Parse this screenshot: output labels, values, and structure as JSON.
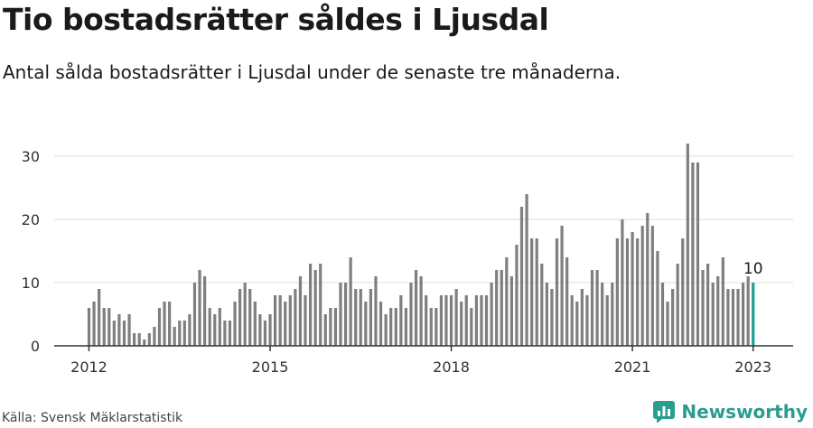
{
  "header": {
    "title": "Tio bostadsrätter såldes i Ljusdal",
    "subtitle": "Antal sålda bostadsrätter i Ljusdal under de senaste tre månaderna."
  },
  "footer": {
    "source": "Källa: Svensk Mäklarstatistik",
    "brand": "Newsworthy"
  },
  "colors": {
    "bar": "#7f7f7f",
    "highlight": "#1f9e94",
    "grid": "#dedede",
    "axis": "#333333",
    "brand": "#2a9d8f"
  },
  "chart_data": {
    "type": "bar",
    "title": "Tio bostadsrätter såldes i Ljusdal",
    "subtitle": "Antal sålda bostadsrätter i Ljusdal under de senaste tre månaderna.",
    "xlabel": "",
    "ylabel": "",
    "ylim": [
      0,
      32
    ],
    "yticks": [
      "0",
      "10",
      "20",
      "30"
    ],
    "xticks": [
      "2012",
      "2015",
      "2018",
      "2021",
      "2023"
    ],
    "grid": true,
    "legend": "none",
    "start": "2012-01",
    "end": "2023-01",
    "highlight_label": "10",
    "values": [
      6,
      7,
      9,
      6,
      6,
      4,
      5,
      4,
      5,
      2,
      2,
      1,
      2,
      3,
      6,
      7,
      7,
      3,
      4,
      4,
      5,
      10,
      12,
      11,
      6,
      5,
      6,
      4,
      4,
      7,
      9,
      10,
      9,
      7,
      5,
      4,
      5,
      8,
      8,
      7,
      8,
      9,
      11,
      8,
      13,
      12,
      13,
      5,
      6,
      6,
      10,
      10,
      14,
      9,
      9,
      7,
      9,
      11,
      7,
      5,
      6,
      6,
      8,
      6,
      10,
      12,
      11,
      8,
      6,
      6,
      8,
      8,
      8,
      9,
      7,
      8,
      6,
      8,
      8,
      8,
      10,
      12,
      12,
      14,
      11,
      16,
      22,
      24,
      17,
      17,
      13,
      10,
      9,
      17,
      19,
      14,
      8,
      7,
      9,
      8,
      12,
      12,
      10,
      8,
      10,
      17,
      20,
      17,
      18,
      17,
      19,
      21,
      19,
      15,
      10,
      7,
      9,
      13,
      17,
      32,
      29,
      29,
      12,
      13,
      10,
      11,
      14,
      9,
      9,
      9,
      10,
      11,
      10
    ]
  }
}
